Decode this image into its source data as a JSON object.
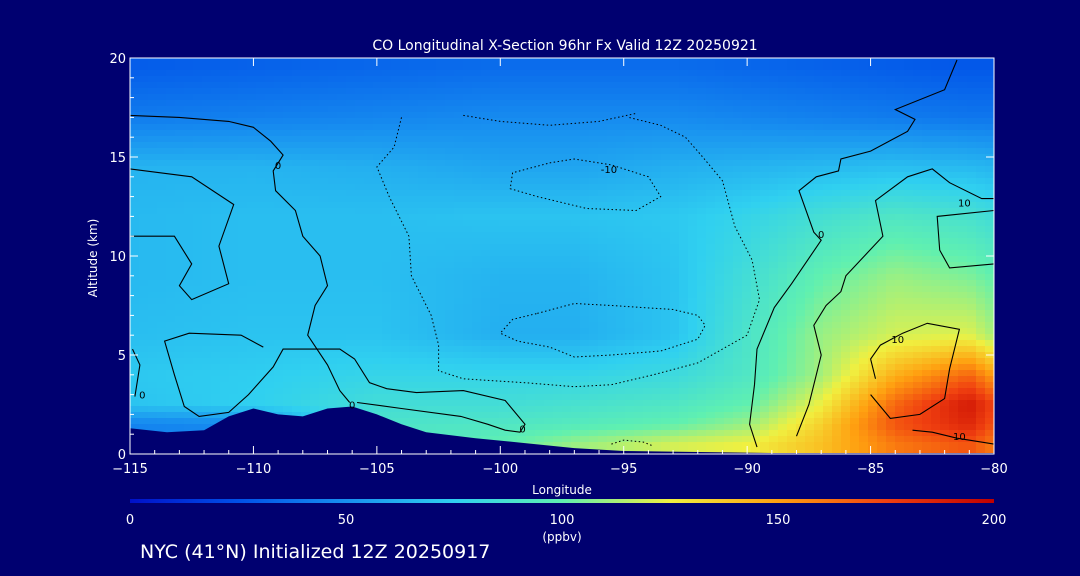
{
  "chart_data": {
    "type": "heatmap",
    "title": "CO Longitudinal X-Section 96hr  Fx Valid 12Z 20250921",
    "xlabel": "Longitude",
    "ylabel": "Altitude (km)",
    "xlim": [
      -115,
      -80
    ],
    "ylim": [
      0,
      20
    ],
    "x_ticks": [
      -115,
      -110,
      -105,
      -100,
      -95,
      -90,
      -85,
      -80
    ],
    "x_tick_labels": [
      "−115",
      "−110",
      "−105",
      "−100",
      "−95",
      "−90",
      "−85",
      "−80"
    ],
    "y_ticks": [
      0,
      5,
      10,
      15,
      20
    ],
    "y_tick_labels": [
      "0",
      "5",
      "10",
      "15",
      "20"
    ],
    "colorbar": {
      "min": 0,
      "max": 200,
      "ticks": [
        0,
        50,
        100,
        150,
        200
      ],
      "tick_labels": [
        "0",
        "50",
        "100",
        "150",
        "200"
      ],
      "unit": "(ppbv)",
      "colors": [
        "#0010c8",
        "#0050e8",
        "#1890f0",
        "#30d0f0",
        "#60f0b0",
        "#f0f040",
        "#ffa010",
        "#f04010",
        "#c00000"
      ]
    },
    "field_longitudes": [
      -115,
      -110,
      -105,
      -100,
      -97,
      -93,
      -90,
      -87,
      -84,
      -81,
      -80
    ],
    "field_altitudes": [
      0.5,
      1.5,
      2.5,
      4,
      6,
      9,
      12,
      14.5,
      17,
      19.5
    ],
    "field_values": [
      [
        45,
        48,
        95,
        100,
        110,
        120,
        125,
        140,
        160,
        170,
        160
      ],
      [
        45,
        48,
        90,
        92,
        95,
        100,
        110,
        135,
        170,
        185,
        170
      ],
      [
        70,
        75,
        85,
        85,
        88,
        92,
        100,
        125,
        165,
        190,
        175
      ],
      [
        72,
        74,
        78,
        78,
        78,
        82,
        92,
        112,
        145,
        165,
        150
      ],
      [
        68,
        70,
        70,
        62,
        62,
        70,
        90,
        110,
        120,
        122,
        112
      ],
      [
        66,
        68,
        68,
        64,
        64,
        70,
        85,
        100,
        110,
        105,
        100
      ],
      [
        66,
        68,
        68,
        70,
        70,
        72,
        78,
        86,
        92,
        88,
        84
      ],
      [
        64,
        64,
        62,
        58,
        58,
        62,
        64,
        66,
        68,
        66,
        64
      ],
      [
        42,
        44,
        46,
        48,
        48,
        48,
        46,
        44,
        42,
        40,
        40
      ],
      [
        30,
        32,
        34,
        36,
        36,
        36,
        34,
        32,
        30,
        28,
        28
      ]
    ],
    "terrain": {
      "x": [
        -115,
        -113.5,
        -112,
        -111,
        -110,
        -109,
        -108,
        -107,
        -106,
        -105,
        -104,
        -103,
        -101,
        -99,
        -97,
        -95,
        -92,
        -89,
        -86,
        -83,
        -80
      ],
      "y": [
        1.3,
        1.1,
        1.2,
        1.9,
        2.3,
        2.0,
        1.9,
        2.3,
        2.4,
        2.0,
        1.5,
        1.1,
        0.8,
        0.55,
        0.3,
        0.15,
        0.1,
        0.05,
        0.05,
        0.05,
        0.05
      ]
    },
    "contour_labels": [
      {
        "text": "-10",
        "lon": -95.6,
        "alt": 14.4
      },
      {
        "text": "10",
        "lon": -81.2,
        "alt": 12.7
      },
      {
        "text": "10",
        "lon": -83.9,
        "alt": 5.8
      },
      {
        "text": "10",
        "lon": -81.4,
        "alt": 0.9
      },
      {
        "text": "0",
        "lon": -109,
        "alt": 14.6
      },
      {
        "text": "0",
        "lon": -87,
        "alt": 11.1
      },
      {
        "text": "0",
        "lon": -114.5,
        "alt": 3.0
      },
      {
        "text": "0",
        "lon": -106,
        "alt": 2.5
      },
      {
        "text": "0",
        "lon": -99.1,
        "alt": 1.3
      }
    ],
    "contours_solid": [
      [
        [
          -115,
          17.1
        ],
        [
          -113,
          17.0
        ],
        [
          -111,
          16.8
        ],
        [
          -110,
          16.5
        ],
        [
          -109.3,
          15.8
        ],
        [
          -108.8,
          15.1
        ],
        [
          -109.2,
          14.3
        ],
        [
          -109.1,
          13.3
        ],
        [
          -108.3,
          12.3
        ],
        [
          -108.0,
          11.0
        ],
        [
          -107.3,
          10.0
        ],
        [
          -107.0,
          8.5
        ],
        [
          -107.5,
          7.5
        ],
        [
          -107.8,
          6.0
        ],
        [
          -107.0,
          4.5
        ],
        [
          -106.5,
          3.2
        ],
        [
          -106.1,
          2.6
        ]
      ],
      [
        [
          -115,
          14.4
        ],
        [
          -112.5,
          14.0
        ],
        [
          -110.8,
          12.6
        ],
        [
          -111.4,
          10.5
        ],
        [
          -111.0,
          8.6
        ],
        [
          -112.5,
          7.8
        ],
        [
          -113.0,
          8.5
        ],
        [
          -112.5,
          9.6
        ],
        [
          -113.2,
          11.0
        ],
        [
          -115,
          11.0
        ]
      ],
      [
        [
          -105.8,
          2.6
        ],
        [
          -104.0,
          2.3
        ],
        [
          -101.6,
          1.9
        ],
        [
          -100.5,
          1.5
        ],
        [
          -99.8,
          1.2
        ],
        [
          -99.2,
          1.1
        ],
        [
          -99.0,
          1.5
        ],
        [
          -99.8,
          2.7
        ],
        [
          -101.5,
          3.2
        ],
        [
          -103.4,
          3.1
        ],
        [
          -104.6,
          3.3
        ],
        [
          -105.3,
          3.6
        ],
        [
          -105.9,
          4.8
        ],
        [
          -106.5,
          5.3
        ],
        [
          -108.8,
          5.3
        ],
        [
          -109.2,
          4.4
        ],
        [
          -110.2,
          3.0
        ],
        [
          -111.0,
          2.1
        ],
        [
          -112.2,
          1.9
        ],
        [
          -112.8,
          2.4
        ],
        [
          -113.2,
          4.0
        ],
        [
          -113.6,
          5.7
        ],
        [
          -112.6,
          6.1
        ],
        [
          -110.5,
          6.0
        ],
        [
          -109.6,
          5.4
        ]
      ],
      [
        [
          -114.8,
          2.9
        ],
        [
          -114.6,
          4.5
        ],
        [
          -114.9,
          5.3
        ]
      ],
      [
        [
          -89.6,
          0.35
        ],
        [
          -89.9,
          1.5
        ],
        [
          -89.7,
          3.5
        ],
        [
          -89.6,
          5.3
        ],
        [
          -88.9,
          7.4
        ],
        [
          -88.2,
          8.6
        ],
        [
          -87.0,
          10.8
        ],
        [
          -87.3,
          11.2
        ],
        [
          -87.9,
          13.3
        ],
        [
          -87.2,
          14.0
        ],
        [
          -86.3,
          14.3
        ],
        [
          -86.2,
          14.9
        ],
        [
          -85.0,
          15.3
        ],
        [
          -83.5,
          16.3
        ],
        [
          -83.2,
          16.9
        ],
        [
          -84.0,
          17.4
        ],
        [
          -82.0,
          18.4
        ],
        [
          -81.5,
          19.9
        ]
      ],
      [
        [
          -88.0,
          0.9
        ],
        [
          -87.5,
          2.5
        ],
        [
          -87.2,
          4.0
        ],
        [
          -87.0,
          5.0
        ],
        [
          -87.3,
          6.5
        ],
        [
          -86.8,
          7.5
        ],
        [
          -86.2,
          8.2
        ],
        [
          -86.0,
          9.0
        ],
        [
          -84.5,
          11.0
        ],
        [
          -84.8,
          12.8
        ],
        [
          -83.5,
          14.0
        ],
        [
          -82.5,
          14.4
        ],
        [
          -81.8,
          13.7
        ],
        [
          -80.5,
          12.9
        ],
        [
          -80.0,
          12.9
        ]
      ],
      [
        [
          -80.0,
          9.6
        ],
        [
          -81.8,
          9.4
        ],
        [
          -82.2,
          10.3
        ],
        [
          -82.3,
          12.0
        ],
        [
          -80.0,
          12.3
        ]
      ],
      [
        [
          -85.0,
          3.0
        ],
        [
          -84.2,
          1.8
        ],
        [
          -83.0,
          2.0
        ],
        [
          -82.0,
          2.8
        ],
        [
          -81.8,
          4.3
        ],
        [
          -81.4,
          6.3
        ],
        [
          -82.7,
          6.6
        ],
        [
          -83.7,
          6.1
        ],
        [
          -84.6,
          5.5
        ],
        [
          -85.0,
          4.8
        ],
        [
          -84.8,
          3.8
        ]
      ],
      [
        [
          -80.0,
          0.5
        ],
        [
          -81.5,
          0.8
        ],
        [
          -82.5,
          1.1
        ],
        [
          -83.3,
          1.2
        ]
      ]
    ],
    "contours_dashed": [
      [
        [
          -104.0,
          17.0
        ],
        [
          -104.3,
          15.5
        ],
        [
          -105.0,
          14.5
        ],
        [
          -104.5,
          13.0
        ],
        [
          -103.7,
          11.0
        ],
        [
          -103.6,
          9.0
        ],
        [
          -102.8,
          7.0
        ],
        [
          -102.5,
          5.5
        ],
        [
          -102.5,
          4.2
        ],
        [
          -101.5,
          3.8
        ],
        [
          -99.0,
          3.6
        ],
        [
          -97.0,
          3.4
        ],
        [
          -95.5,
          3.5
        ],
        [
          -93.8,
          4.0
        ],
        [
          -92.0,
          4.6
        ],
        [
          -90.0,
          6.0
        ],
        [
          -89.5,
          7.8
        ],
        [
          -89.8,
          9.8
        ],
        [
          -90.5,
          11.5
        ],
        [
          -91.0,
          13.8
        ],
        [
          -91.8,
          15.0
        ],
        [
          -92.5,
          16.0
        ],
        [
          -93.5,
          16.6
        ],
        [
          -94.8,
          17.0
        ]
      ],
      [
        [
          -98.0,
          14.7
        ],
        [
          -97.0,
          14.9
        ],
        [
          -95.5,
          14.6
        ],
        [
          -94.0,
          14.0
        ],
        [
          -93.5,
          13.0
        ],
        [
          -94.5,
          12.3
        ],
        [
          -96.5,
          12.4
        ],
        [
          -98.5,
          13.0
        ],
        [
          -99.6,
          13.4
        ],
        [
          -99.5,
          14.2
        ],
        [
          -98.0,
          14.7
        ]
      ],
      [
        [
          -98.5,
          7.1
        ],
        [
          -97.0,
          7.6
        ],
        [
          -95.5,
          7.5
        ],
        [
          -93.0,
          7.3
        ],
        [
          -92.0,
          7.0
        ],
        [
          -91.7,
          6.5
        ],
        [
          -92.0,
          5.8
        ],
        [
          -93.5,
          5.2
        ],
        [
          -95.5,
          5.0
        ],
        [
          -97.0,
          4.9
        ],
        [
          -98.0,
          5.4
        ],
        [
          -99.3,
          5.7
        ],
        [
          -100.0,
          6.1
        ],
        [
          -99.5,
          6.8
        ],
        [
          -98.5,
          7.1
        ]
      ],
      [
        [
          -101.5,
          17.1
        ],
        [
          -100.0,
          16.8
        ],
        [
          -98.0,
          16.6
        ],
        [
          -96.0,
          16.8
        ],
        [
          -94.5,
          17.2
        ]
      ],
      [
        [
          -95.5,
          0.5
        ],
        [
          -95.0,
          0.7
        ],
        [
          -94.2,
          0.6
        ],
        [
          -93.8,
          0.4
        ]
      ]
    ]
  },
  "footer": "NYC (41°N) Initialized 12Z 20250917"
}
